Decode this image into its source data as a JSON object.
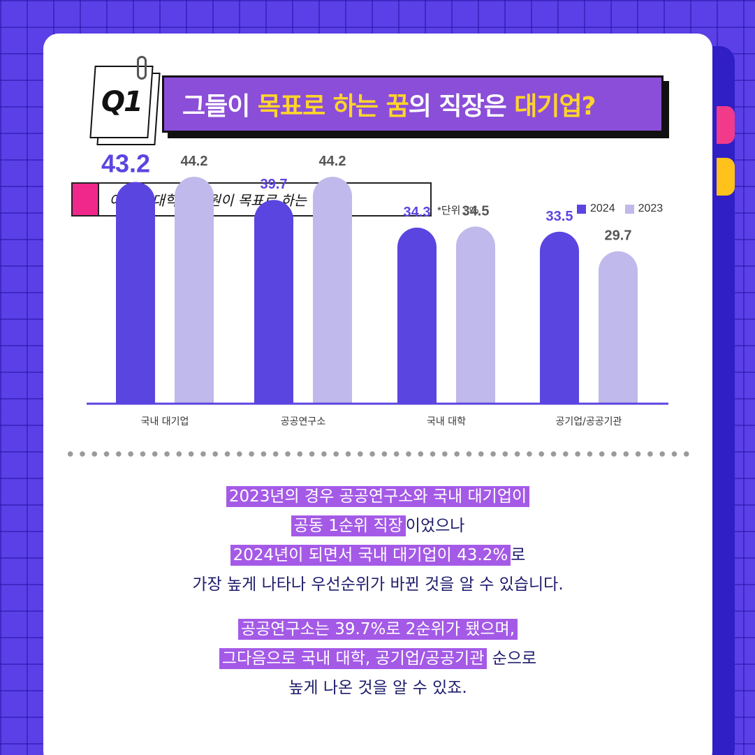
{
  "header": {
    "q_label": "Q1",
    "title_parts": [
      {
        "text": "그들이 ",
        "hl": false
      },
      {
        "text": "목표로 하는 꿈",
        "hl": true
      },
      {
        "text": "의 직장은 ",
        "hl": false
      },
      {
        "text": "대기업?",
        "hl": true
      }
    ]
  },
  "chart_title": "이공계 대학 연구원이 목표로 하는 직장",
  "unit_note": "*단위 : %",
  "legend": [
    {
      "label": "2024",
      "color": "#5b45e0"
    },
    {
      "label": "2023",
      "color": "#c0b9eb"
    }
  ],
  "chart_data": {
    "type": "bar",
    "categories": [
      "국내 대기업",
      "공공연구소",
      "국내 대학",
      "공기업/공공기관"
    ],
    "series": [
      {
        "name": "2024",
        "values": [
          43.2,
          39.7,
          34.3,
          33.5
        ],
        "color": "#5b45e0"
      },
      {
        "name": "2023",
        "values": [
          44.2,
          44.2,
          34.5,
          29.7
        ],
        "color": "#c0b9eb"
      }
    ],
    "highlight": {
      "series": 0,
      "index": 0
    }
  },
  "paragraphs": [
    [
      [
        {
          "text": "2023년의 경우 공공연구소와 국내 대기업이",
          "hl": true
        }
      ],
      [
        {
          "text": "공동 1순위 직장",
          "hl": true
        },
        {
          "text": "이었으나",
          "hl": false
        }
      ],
      [
        {
          "text": "2024년이 되면서 국내 대기업이 43.2%",
          "hl": true
        },
        {
          "text": "로",
          "hl": false
        }
      ],
      [
        {
          "text": "가장 높게 나타나 우선순위가 바뀐 것을 알 수 있습니다.",
          "hl": false
        }
      ]
    ],
    [
      [
        {
          "text": "공공연구소는 39.7%로 2순위가 됐으며,",
          "hl": true
        }
      ],
      [
        {
          "text": "그다음으로 국내 대학, 공기업/공공기관",
          "hl": true
        },
        {
          "text": " 순으로",
          "hl": false
        }
      ],
      [
        {
          "text": "높게 나온 것을 알 수 있죠.",
          "hl": false
        }
      ]
    ]
  ]
}
